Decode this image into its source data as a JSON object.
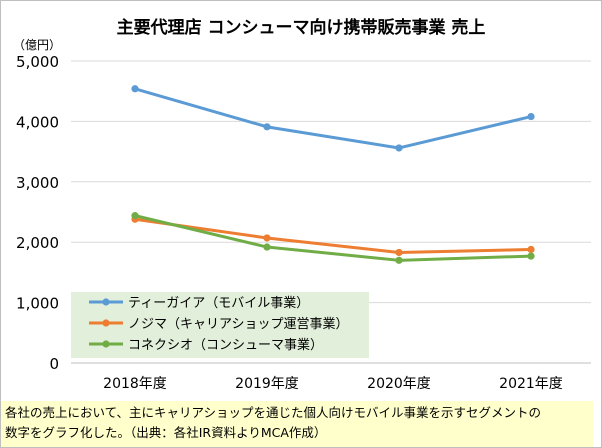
{
  "chart_data": {
    "type": "line",
    "title": "主要代理店 コンシューマ向け携帯販売事業 売上",
    "ylabel": "（億円）",
    "xlabel": "",
    "categories": [
      "2018年度",
      "2019年度",
      "2020年度",
      "2021年度"
    ],
    "ylim": [
      0,
      5000
    ],
    "yticks": [
      0,
      1000,
      2000,
      3000,
      4000,
      5000
    ],
    "ytick_labels": [
      "0",
      "1,000",
      "2,000",
      "3,000",
      "4,000",
      "5,000"
    ],
    "grid": true,
    "legend_position": "bottom-left",
    "series": [
      {
        "name": "ティーガイア（モバイル事業）",
        "color": "#5b9bd5",
        "values": [
          4540,
          3910,
          3560,
          4080
        ]
      },
      {
        "name": "ノジマ（キャリアショップ運営事業）",
        "color": "#ed7d31",
        "values": [
          2380,
          2070,
          1830,
          1880
        ]
      },
      {
        "name": "コネクシオ（コンシューマ事業）",
        "color": "#70ad47",
        "values": [
          2440,
          1920,
          1700,
          1770
        ]
      }
    ]
  },
  "styles": {
    "grid_color": "#d9d9d9",
    "axis_color": "#bfbfbf",
    "legend_bg": "#e2efda",
    "footnote_bg": "#ffffcc"
  },
  "footnote": "各社の売上において、主にキャリアショップを通じた個人向けモバイル事業を示すセグメントの\n数字をグラフ化した。（出典：各社IR資料よりMCA作成）"
}
